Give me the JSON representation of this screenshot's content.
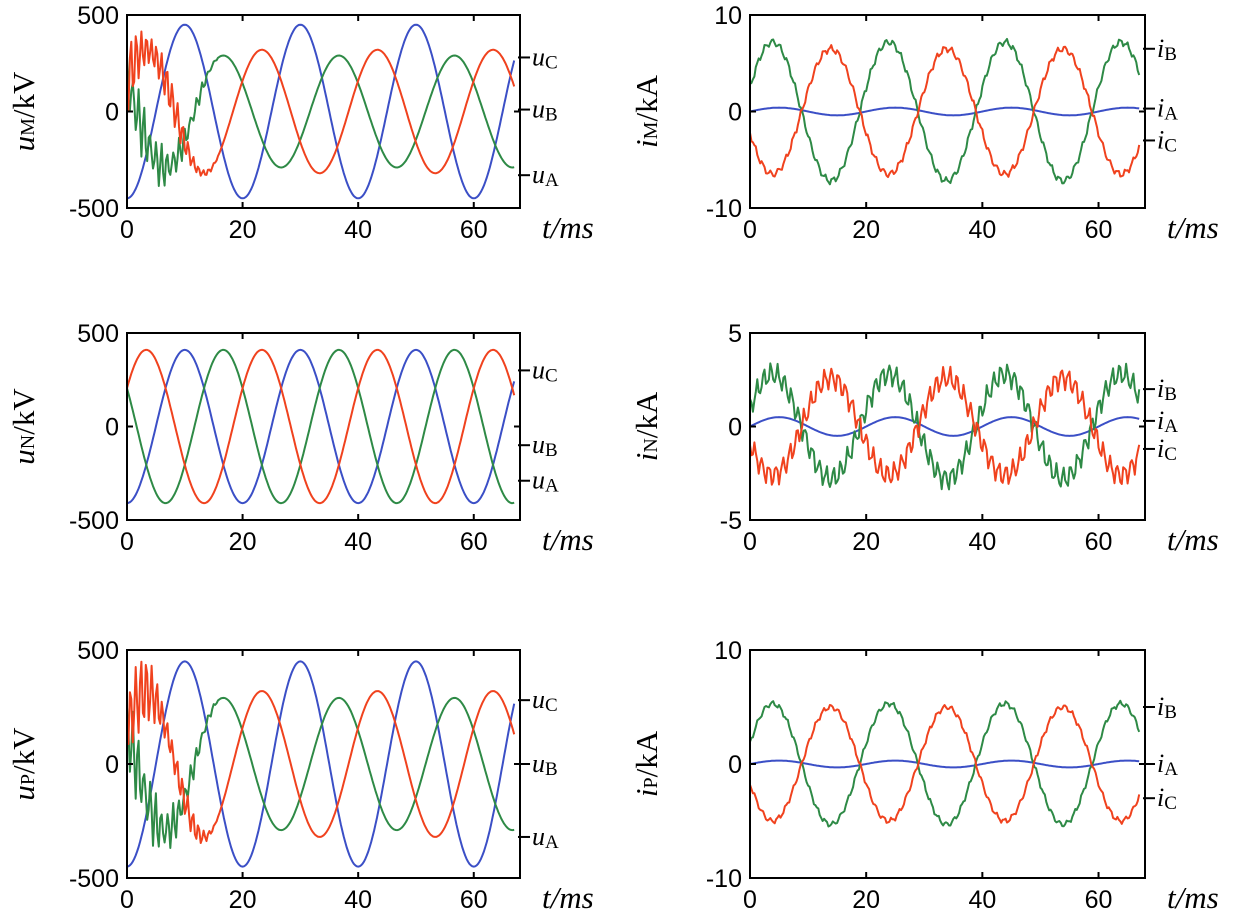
{
  "colors": {
    "A": "#3b4fc6",
    "B": "#2e8a46",
    "C": "#f0421e"
  },
  "chart_data": [
    {
      "type": "line",
      "ylabel": {
        "prefix": "u",
        "sub": "M",
        "suffix": "/kV"
      },
      "xlabel": "t/ms",
      "xlim": [
        0,
        68
      ],
      "ylim": [
        -500,
        500
      ],
      "xticks": [
        0,
        20,
        40,
        60
      ],
      "yticks": [
        -500,
        0,
        500
      ],
      "grid": false,
      "legend_position": "right-inline",
      "series": [
        {
          "name": "u_A",
          "label": "u",
          "sub": "A",
          "phase": "A",
          "amplitude": 450,
          "phase_deg": -90,
          "noise_amp": 0,
          "noise_until": 0,
          "noise_freq": 0,
          "x_end": 67,
          "legend_value": -330
        },
        {
          "name": "u_B",
          "label": "u",
          "sub": "B",
          "phase": "B",
          "amplitude": 290,
          "phase_deg": 150,
          "noise_amp": 140,
          "noise_until": 16,
          "noise_freq": 1.0,
          "x_end": 67,
          "legend_value": 10
        },
        {
          "name": "u_C",
          "label": "u",
          "sub": "C",
          "phase": "C",
          "amplitude": 320,
          "phase_deg": 30,
          "noise_amp": 140,
          "noise_until": 16,
          "noise_freq": 0.9,
          "x_end": 67,
          "legend_value": 280
        }
      ]
    },
    {
      "type": "line",
      "ylabel": {
        "prefix": "i",
        "sub": "M",
        "suffix": "/kA"
      },
      "xlabel": "t/ms",
      "xlim": [
        0,
        68
      ],
      "ylim": [
        -10,
        10
      ],
      "xticks": [
        0,
        20,
        40,
        60
      ],
      "yticks": [
        -10,
        0,
        10
      ],
      "grid": false,
      "legend_position": "right-inline",
      "series": [
        {
          "name": "i_A",
          "label": "i",
          "sub": "A",
          "phase": "A",
          "amplitude": 0.4,
          "phase_deg": 0,
          "noise_amp": 0,
          "noise_until": 0,
          "noise_freq": 0,
          "x_end": 67,
          "legend_value": 0.3
        },
        {
          "name": "i_B",
          "label": "i",
          "sub": "B",
          "phase": "B",
          "amplitude": 7.2,
          "phase_deg": 20,
          "noise_amp": 0.3,
          "noise_until": 68,
          "noise_freq": 1.3,
          "x_end": 67,
          "legend_value": 6.5
        },
        {
          "name": "i_C",
          "label": "i",
          "sub": "C",
          "phase": "C",
          "amplitude": 6.5,
          "phase_deg": -160,
          "noise_amp": 0.3,
          "noise_until": 68,
          "noise_freq": 1.3,
          "x_end": 67,
          "legend_value": -3.0
        }
      ]
    },
    {
      "type": "line",
      "ylabel": {
        "prefix": "u",
        "sub": "N",
        "suffix": "/kV"
      },
      "xlabel": "t/ms",
      "xlim": [
        0,
        68
      ],
      "ylim": [
        -500,
        500
      ],
      "xticks": [
        0,
        20,
        40,
        60
      ],
      "yticks": [
        -500,
        0,
        500
      ],
      "grid": false,
      "legend_position": "right-inline",
      "series": [
        {
          "name": "u_A",
          "label": "u",
          "sub": "A",
          "phase": "A",
          "amplitude": 410,
          "phase_deg": -90,
          "noise_amp": 0,
          "noise_until": 0,
          "noise_freq": 0,
          "x_end": 67,
          "legend_value": -290
        },
        {
          "name": "u_B",
          "label": "u",
          "sub": "B",
          "phase": "B",
          "amplitude": 410,
          "phase_deg": 150,
          "noise_amp": 0,
          "noise_until": 0,
          "noise_freq": 0,
          "x_end": 67,
          "legend_value": -100
        },
        {
          "name": "u_C",
          "label": "u",
          "sub": "C",
          "phase": "C",
          "amplitude": 410,
          "phase_deg": 30,
          "noise_amp": 0,
          "noise_until": 0,
          "noise_freq": 0,
          "x_end": 67,
          "legend_value": 300
        }
      ]
    },
    {
      "type": "line",
      "ylabel": {
        "prefix": "i",
        "sub": "N",
        "suffix": "/kA"
      },
      "xlabel": "t/ms",
      "xlim": [
        0,
        68
      ],
      "ylim": [
        -5,
        5
      ],
      "xticks": [
        0,
        20,
        40,
        60
      ],
      "yticks": [
        -5,
        0,
        5
      ],
      "grid": false,
      "legend_position": "right-inline",
      "series": [
        {
          "name": "i_A",
          "label": "i",
          "sub": "A",
          "phase": "A",
          "amplitude": 0.5,
          "phase_deg": 0,
          "noise_amp": 0,
          "noise_until": 0,
          "noise_freq": 0,
          "x_end": 67,
          "legend_value": 0.3
        },
        {
          "name": "i_B",
          "label": "i",
          "sub": "B",
          "phase": "B",
          "amplitude": 2.8,
          "phase_deg": 20,
          "noise_amp": 0.5,
          "noise_until": 68,
          "noise_freq": 1.2,
          "x_end": 67,
          "legend_value": 2.0
        },
        {
          "name": "i_C",
          "label": "i",
          "sub": "C",
          "phase": "C",
          "amplitude": 2.6,
          "phase_deg": -160,
          "noise_amp": 0.5,
          "noise_until": 68,
          "noise_freq": 1.2,
          "x_end": 67,
          "legend_value": -1.2
        }
      ]
    },
    {
      "type": "line",
      "ylabel": {
        "prefix": "u",
        "sub": "P",
        "suffix": "/kV"
      },
      "xlabel": "t/ms",
      "xlim": [
        0,
        68
      ],
      "ylim": [
        -500,
        500
      ],
      "xticks": [
        0,
        20,
        40,
        60
      ],
      "yticks": [
        -500,
        0,
        500
      ],
      "grid": false,
      "legend_position": "right-inline",
      "series": [
        {
          "name": "u_A",
          "label": "u",
          "sub": "A",
          "phase": "A",
          "amplitude": 450,
          "phase_deg": -90,
          "noise_amp": 0,
          "noise_until": 0,
          "noise_freq": 0,
          "x_end": 67,
          "legend_value": -320
        },
        {
          "name": "u_B",
          "label": "u",
          "sub": "B",
          "phase": "B",
          "amplitude": 290,
          "phase_deg": 150,
          "noise_amp": 140,
          "noise_until": 16,
          "noise_freq": 1.0,
          "x_end": 67,
          "legend_value": 0
        },
        {
          "name": "u_C",
          "label": "u",
          "sub": "C",
          "phase": "C",
          "amplitude": 320,
          "phase_deg": 30,
          "noise_amp": 140,
          "noise_until": 16,
          "noise_freq": 0.9,
          "x_end": 67,
          "legend_value": 280
        }
      ]
    },
    {
      "type": "line",
      "ylabel": {
        "prefix": "i",
        "sub": "P",
        "suffix": "/kA"
      },
      "xlabel": "t/ms",
      "xlim": [
        0,
        68
      ],
      "ylim": [
        -10,
        10
      ],
      "xticks": [
        0,
        20,
        40,
        60
      ],
      "yticks": [
        -10,
        0,
        10
      ],
      "grid": false,
      "legend_position": "right-inline",
      "series": [
        {
          "name": "i_A",
          "label": "i",
          "sub": "A",
          "phase": "A",
          "amplitude": 0.3,
          "phase_deg": 0,
          "noise_amp": 0,
          "noise_until": 0,
          "noise_freq": 0,
          "x_end": 67,
          "legend_value": 0
        },
        {
          "name": "i_B",
          "label": "i",
          "sub": "B",
          "phase": "B",
          "amplitude": 5.3,
          "phase_deg": 20,
          "noise_amp": 0.2,
          "noise_until": 68,
          "noise_freq": 1.3,
          "x_end": 67,
          "legend_value": 5.0
        },
        {
          "name": "i_C",
          "label": "i",
          "sub": "C",
          "phase": "C",
          "amplitude": 5.0,
          "phase_deg": -160,
          "noise_amp": 0.2,
          "noise_until": 68,
          "noise_freq": 1.3,
          "x_end": 67,
          "legend_value": -3.0
        }
      ]
    }
  ]
}
